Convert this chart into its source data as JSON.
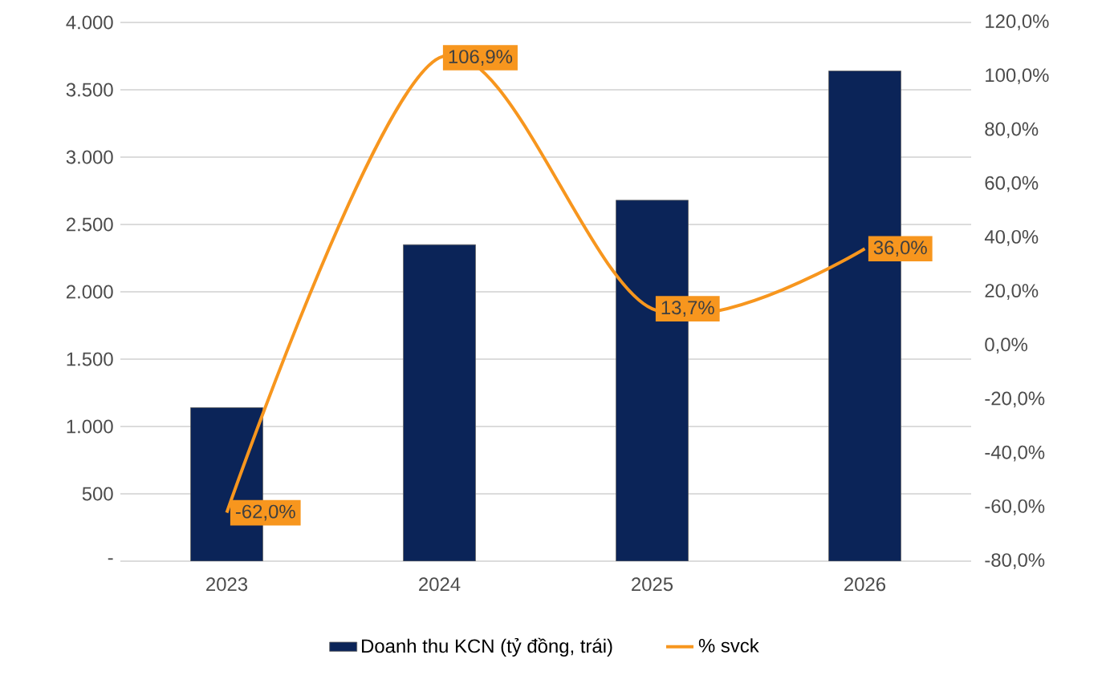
{
  "chart_data": {
    "type": "bar",
    "categories": [
      "2023",
      "2024",
      "2025",
      "2026"
    ],
    "series": [
      {
        "name": "Doanh thu KCN (tỷ đồng, trái)",
        "color": "#0b2458",
        "values": [
          1140,
          2350,
          2680,
          3640
        ]
      },
      {
        "name": "% svck",
        "type": "line",
        "axis": "y2",
        "color": "#f7961e",
        "values": [
          -62.0,
          106.9,
          13.7,
          36.0
        ],
        "value_labels": [
          "-62,0%",
          "106,9%",
          "13,7%",
          "36,0%"
        ]
      }
    ],
    "ylim": [
      0,
      4000
    ],
    "yticks": [
      {
        "value": 0,
        "label": "-"
      },
      500,
      {
        "value": 1000,
        "label": "1.000"
      },
      {
        "value": 1500,
        "label": "1.500"
      },
      {
        "value": 2000,
        "label": "2.000"
      },
      {
        "value": 2500,
        "label": "2.500"
      },
      {
        "value": 3000,
        "label": "3.000"
      },
      {
        "value": 3500,
        "label": "3.500"
      },
      {
        "value": 4000,
        "label": "4.000"
      }
    ],
    "y2lim": [
      -80,
      120
    ],
    "y2ticks": [
      {
        "value": -80,
        "label": "-80,0%"
      },
      {
        "value": -60,
        "label": "-60,0%"
      },
      {
        "value": -40,
        "label": "-40,0%"
      },
      {
        "value": -20,
        "label": "-20,0%"
      },
      {
        "value": 0,
        "label": "0,0%"
      },
      {
        "value": 20,
        "label": "20,0%"
      },
      {
        "value": 40,
        "label": "40,0%"
      },
      {
        "value": 60,
        "label": "60,0%"
      },
      {
        "value": 80,
        "label": "80,0%"
      },
      {
        "value": 100,
        "label": "100,0%"
      },
      {
        "value": 120,
        "label": "120,0%"
      }
    ],
    "grid": "y",
    "legend": "bottom"
  }
}
